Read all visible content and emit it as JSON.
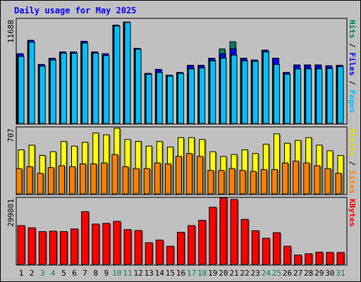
{
  "title": "Daily usage for May 2025",
  "colors": {
    "background": "#c0c0c0",
    "title": "#0000ff",
    "hits": "#00805c",
    "files": "#0000ff",
    "pages": "#00c0ff",
    "visits": "#ffff00",
    "sites": "#ff8000",
    "kbytes": "#ff0000",
    "weekend_day_label": "#00805c"
  },
  "axis_max_labels": {
    "top": "11688",
    "middle": "707",
    "bottom": "299001"
  },
  "legend": {
    "top": [
      {
        "text": "Hits",
        "color": "#00805c"
      },
      {
        "text": " / ",
        "color": "#000000"
      },
      {
        "text": "Files",
        "color": "#0000ff"
      },
      {
        "text": " / ",
        "color": "#000000"
      },
      {
        "text": "Pages",
        "color": "#00c0ff"
      }
    ],
    "middle": [
      {
        "text": "Visits",
        "color": "#e0e000"
      },
      {
        "text": " / ",
        "color": "#000000"
      },
      {
        "text": "Sites",
        "color": "#ff8000"
      }
    ],
    "bottom": [
      {
        "text": "KBytes",
        "color": "#ff0000"
      }
    ]
  },
  "chart_data": [
    {
      "type": "bar",
      "name": "Hits / Files / Pages",
      "categories": [
        "1",
        "2",
        "3",
        "4",
        "5",
        "6",
        "7",
        "8",
        "9",
        "10",
        "11",
        "12",
        "13",
        "14",
        "15",
        "16",
        "17",
        "18",
        "19",
        "20",
        "21",
        "22",
        "23",
        "24",
        "25",
        "26",
        "27",
        "28",
        "29",
        "30",
        "31"
      ],
      "weekend_days": [
        "3",
        "4",
        "10",
        "11",
        "17",
        "18",
        "24",
        "25",
        "31"
      ],
      "ylim": [
        0,
        11688
      ],
      "series": [
        {
          "name": "Hits",
          "values": [
            7800,
            9300,
            6600,
            7300,
            8000,
            8000,
            9200,
            8000,
            7800,
            11000,
            11350,
            8400,
            5600,
            6050,
            5400,
            5700,
            6500,
            6500,
            7300,
            8350,
            9150,
            7300,
            7100,
            8200,
            7300,
            5700,
            6550,
            6550,
            6550,
            6450,
            6500
          ]
        },
        {
          "name": "Files",
          "values": [
            7800,
            9300,
            6600,
            7300,
            8000,
            8000,
            9200,
            8000,
            7800,
            11000,
            11350,
            8400,
            5600,
            6050,
            5400,
            5700,
            6500,
            6500,
            7300,
            7800,
            8350,
            7300,
            7100,
            8200,
            7300,
            5700,
            6550,
            6550,
            6550,
            6450,
            6500
          ]
        },
        {
          "name": "Pages",
          "values": [
            7500,
            9100,
            6400,
            7100,
            7850,
            7850,
            9000,
            7850,
            7600,
            10900,
            11300,
            8300,
            5500,
            5700,
            5300,
            5600,
            6100,
            6200,
            7000,
            7300,
            7650,
            7000,
            6950,
            8000,
            6600,
            5500,
            6100,
            6100,
            6100,
            6150,
            6350
          ]
        }
      ]
    },
    {
      "type": "bar",
      "name": "Visits / Sites",
      "categories": [
        "1",
        "2",
        "3",
        "4",
        "5",
        "6",
        "7",
        "8",
        "9",
        "10",
        "11",
        "12",
        "13",
        "14",
        "15",
        "16",
        "17",
        "18",
        "19",
        "20",
        "21",
        "22",
        "23",
        "24",
        "25",
        "26",
        "27",
        "28",
        "29",
        "30",
        "31"
      ],
      "ylim": [
        0,
        707
      ],
      "series": [
        {
          "name": "Visits",
          "values": [
            470,
            520,
            410,
            450,
            560,
            510,
            550,
            650,
            630,
            700,
            580,
            560,
            510,
            560,
            500,
            600,
            600,
            580,
            450,
            400,
            420,
            470,
            430,
            530,
            640,
            540,
            570,
            600,
            520,
            460,
            410
          ]
        },
        {
          "name": "Sites",
          "values": [
            270,
            290,
            220,
            280,
            300,
            290,
            320,
            320,
            330,
            420,
            290,
            270,
            270,
            330,
            320,
            400,
            430,
            400,
            250,
            250,
            270,
            250,
            240,
            260,
            260,
            330,
            350,
            330,
            300,
            270,
            220
          ]
        }
      ]
    },
    {
      "type": "bar",
      "name": "KBytes",
      "categories": [
        "1",
        "2",
        "3",
        "4",
        "5",
        "6",
        "7",
        "8",
        "9",
        "10",
        "11",
        "12",
        "13",
        "14",
        "15",
        "16",
        "17",
        "18",
        "19",
        "20",
        "21",
        "22",
        "23",
        "24",
        "25",
        "26",
        "27",
        "28",
        "29",
        "30",
        "31"
      ],
      "ylim": [
        0,
        299001
      ],
      "series": [
        {
          "name": "KBytes",
          "values": [
            175000,
            165000,
            148000,
            150000,
            148000,
            160000,
            238000,
            182000,
            185000,
            194000,
            157000,
            153000,
            98000,
            110000,
            82000,
            145000,
            175000,
            199000,
            258000,
            300000,
            293000,
            203000,
            152000,
            118000,
            143000,
            82000,
            42000,
            48000,
            55000,
            54000,
            54000
          ]
        }
      ]
    }
  ]
}
